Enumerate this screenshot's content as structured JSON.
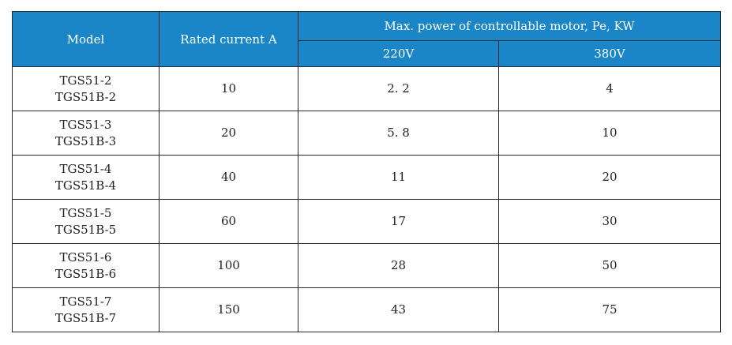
{
  "table": {
    "headers": {
      "model": "Model",
      "rated_current": "Rated current A",
      "max_power": "Max. power of controllable motor, Pe, KW",
      "v220": "220V",
      "v380": "380V"
    },
    "rows": [
      {
        "model_1": "TGS51-2",
        "model_2": "TGS51B-2",
        "current": "10",
        "p220": "2. 2",
        "p380": "4"
      },
      {
        "model_1": "TGS51-3",
        "model_2": "TGS51B-3",
        "current": "20",
        "p220": "5. 8",
        "p380": "10"
      },
      {
        "model_1": "TGS51-4",
        "model_2": "TGS51B-4",
        "current": "40",
        "p220": "11",
        "p380": "20"
      },
      {
        "model_1": "TGS51-5",
        "model_2": "TGS51B-5",
        "current": "60",
        "p220": "17",
        "p380": "30"
      },
      {
        "model_1": "TGS51-6",
        "model_2": "TGS51B-6",
        "current": "100",
        "p220": "28",
        "p380": "50"
      },
      {
        "model_1": "TGS51-7",
        "model_2": "TGS51B-7",
        "current": "150",
        "p220": "43",
        "p380": "75"
      }
    ],
    "colors": {
      "header_bg": "#1a86c7",
      "header_text": "#ffffff",
      "border": "#2a2a2a"
    }
  }
}
